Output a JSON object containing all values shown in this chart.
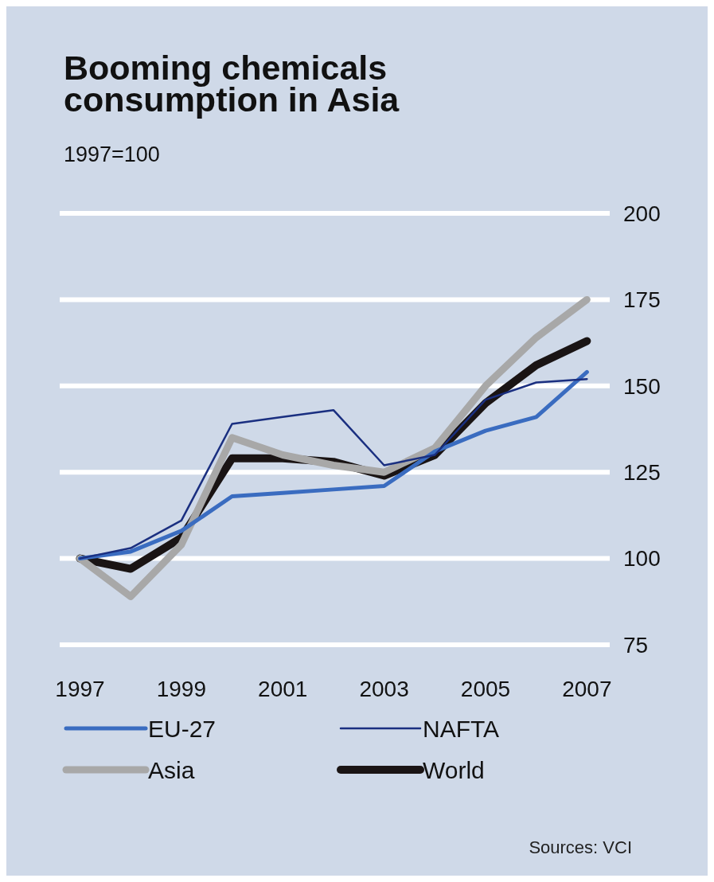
{
  "chart_data": {
    "type": "line",
    "title": "Booming chemicals consumption in Asia",
    "subtitle": "1997=100",
    "x": [
      1997,
      1998,
      1999,
      2000,
      2001,
      2002,
      2003,
      2004,
      2005,
      2006,
      2007
    ],
    "series": [
      {
        "name": "EU-27",
        "color": "#3a6cc0",
        "values": [
          100,
          102,
          108,
          118,
          119,
          120,
          121,
          131,
          137,
          141,
          154
        ]
      },
      {
        "name": "NAFTA",
        "color": "#1a2f80",
        "values": [
          100,
          103,
          111,
          139,
          141,
          143,
          127,
          130,
          146,
          151,
          152
        ]
      },
      {
        "name": "Asia",
        "color": "#a8a8a8",
        "values": [
          100,
          89,
          104,
          135,
          130,
          127,
          125,
          132,
          150,
          164,
          175
        ]
      },
      {
        "name": "World",
        "color": "#1a1414",
        "values": [
          100,
          97,
          106,
          129,
          129,
          128,
          124,
          130,
          145,
          156,
          163
        ]
      }
    ],
    "xlim": [
      1996.6,
      2007.45
    ],
    "xticks": [
      1997,
      1999,
      2001,
      2003,
      2005,
      2007
    ],
    "ylim": [
      75,
      200
    ],
    "yticks": [
      75,
      100,
      125,
      150,
      175,
      200
    ],
    "grid": "y",
    "legend": "bottom",
    "line_style": "solid",
    "annotations": [
      "Sources: VCI"
    ]
  }
}
